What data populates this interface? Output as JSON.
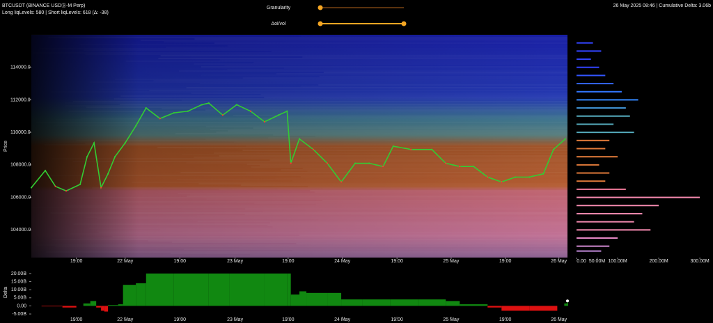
{
  "header": {
    "symbol": "BTCUSDT (BINANCE USDⓈ-M Perp)",
    "levels": "Long liqLevels: 580 | Short liqLevels: 618 (Δ: -38)",
    "status": "26 May 2025 08:46 | Cumulative Delta: 3.06b"
  },
  "controls": [
    {
      "label": "Granularity"
    },
    {
      "label": "Δoi/vol"
    }
  ],
  "chart_data": [
    {
      "type": "line",
      "ylabel": "Price",
      "color": "#33cc33",
      "x": [
        0,
        2.6,
        4.5,
        6.5,
        9.1,
        10.4,
        11.7,
        13,
        14.3,
        15.6,
        17.5,
        19.5,
        21.4,
        24,
        26.6,
        29.2,
        31.8,
        33.1,
        35.7,
        38.3,
        40.9,
        43.5,
        46.1,
        47.7,
        48.4,
        50,
        52.6,
        55.2,
        57.8,
        60.4,
        63,
        65.6,
        67.5,
        70.8,
        74.7,
        77.3,
        79.9,
        82.5,
        85.1,
        87.7,
        90.3,
        92.9,
        95.5,
        97.4,
        99.6
      ],
      "values": [
        106600,
        107650,
        106680,
        106400,
        106800,
        108500,
        109350,
        106600,
        107450,
        108500,
        109350,
        110400,
        111500,
        110850,
        111200,
        111300,
        111700,
        111800,
        111060,
        111700,
        111300,
        110650,
        111060,
        111300,
        108100,
        109600,
        108950,
        108100,
        106950,
        108100,
        108100,
        107900,
        109150,
        108950,
        108950,
        108100,
        107900,
        107900,
        107250,
        106950,
        107250,
        107250,
        107450,
        108950,
        109600
      ],
      "xlim": [
        0,
        100
      ],
      "xticks": [
        {
          "value": 8.4,
          "label": "19:00"
        },
        {
          "value": 17.5,
          "label": "22 May"
        },
        {
          "value": 27.7,
          "label": "19:00"
        },
        {
          "value": 38,
          "label": "23 May"
        },
        {
          "value": 47.9,
          "label": "19:00"
        },
        {
          "value": 58,
          "label": "24 May"
        },
        {
          "value": 68.2,
          "label": "19:00"
        },
        {
          "value": 78.3,
          "label": "25 May"
        },
        {
          "value": 88.4,
          "label": "19:00"
        },
        {
          "value": 98.4,
          "label": "26 May"
        }
      ],
      "ylim": [
        102300,
        116000
      ],
      "yticks": [
        {
          "value": 104000,
          "label": "104000.0"
        },
        {
          "value": 106000,
          "label": "106000.0"
        },
        {
          "value": 108000,
          "label": "108000.0"
        },
        {
          "value": 110000,
          "label": "110000.0"
        },
        {
          "value": 112000,
          "label": "112000.0"
        },
        {
          "value": 114000,
          "label": "114000.0"
        }
      ]
    },
    {
      "type": "hbar",
      "y": [
        115500,
        115000,
        114500,
        114000,
        113500,
        113000,
        112500,
        112000,
        111500,
        111000,
        110500,
        110000,
        109500,
        109000,
        108500,
        108000,
        107500,
        107000,
        106500,
        106000,
        105500,
        105000,
        104500,
        104000,
        103500,
        103000,
        102700
      ],
      "values": [
        40000000,
        60000000,
        35000000,
        55000000,
        70000000,
        90000000,
        110000000,
        150000000,
        120000000,
        130000000,
        90000000,
        140000000,
        80000000,
        70000000,
        100000000,
        55000000,
        80000000,
        70000000,
        120000000,
        300000000,
        200000000,
        160000000,
        140000000,
        180000000,
        100000000,
        80000000,
        60000000
      ],
      "colors": [
        "#3344ff",
        "#3344ff",
        "#3344ff",
        "#3344ff",
        "#3355ff",
        "#3366ff",
        "#3377ff",
        "#3388ff",
        "#4499dd",
        "#55aabb",
        "#55aabb",
        "#55aabb",
        "#e07a3a",
        "#e07a3a",
        "#e07a3a",
        "#e07a3a",
        "#e07a3a",
        "#e07a3a",
        "#f07a9a",
        "#f58ab0",
        "#f58ab0",
        "#f58ab0",
        "#f58ab0",
        "#f58ab0",
        "#e88ac8",
        "#d08ad0",
        "#c08ad8"
      ],
      "ylim": [
        102300,
        116000
      ],
      "xlim": [
        0,
        310000000
      ],
      "xticks": [
        {
          "value": 0,
          "label": "0.00"
        },
        {
          "value": 50000000,
          "label": "50.00M"
        },
        {
          "value": 100000000,
          "label": "100.00M"
        },
        {
          "value": 200000000,
          "label": "200.00M"
        },
        {
          "value": 300000000,
          "label": "300.00M"
        }
      ]
    },
    {
      "type": "delta",
      "ylabel": "Delta",
      "x": [
        0,
        1.9,
        5.8,
        8.4,
        9.7,
        11,
        12.1,
        13,
        13.6,
        14.3,
        16.2,
        17.1,
        19.5,
        21.4,
        26.6,
        33.1,
        37,
        43.5,
        47.7,
        48.4,
        50,
        51.3,
        55.2,
        57.8,
        61.7,
        66.9,
        72.1,
        77.3,
        79.9,
        85.1,
        87.7,
        92.9,
        98.1,
        99.4,
        100
      ],
      "values": [
        0,
        -0.3,
        -1,
        0,
        1.5,
        3,
        -1,
        -3,
        -3.5,
        0.5,
        1,
        13,
        14,
        20,
        20,
        20,
        20,
        20,
        20,
        7,
        9,
        8,
        8,
        4,
        4,
        4,
        4,
        3,
        1,
        -1,
        -3,
        -3,
        0,
        1.5,
        3.06
      ],
      "positive_color": "#118811",
      "negative_color": "#dd1111",
      "xlim": [
        0,
        100
      ],
      "xticks": [
        {
          "value": 8.4,
          "label": "19:00"
        },
        {
          "value": 17.5,
          "label": "22 May"
        },
        {
          "value": 27.7,
          "label": "19:00"
        },
        {
          "value": 38,
          "label": "23 May"
        },
        {
          "value": 47.9,
          "label": "19:00"
        },
        {
          "value": 58,
          "label": "24 May"
        },
        {
          "value": 68.2,
          "label": "19:00"
        },
        {
          "value": 78.3,
          "label": "25 May"
        },
        {
          "value": 88.4,
          "label": "19:00"
        },
        {
          "value": 98.4,
          "label": "26 May"
        }
      ],
      "ylim": [
        -6.7,
        23.4
      ],
      "yticks": [
        {
          "value": -5,
          "label": "-5.00B"
        },
        {
          "value": 0,
          "label": "0.00"
        },
        {
          "value": 5,
          "label": "5.00B"
        },
        {
          "value": 10,
          "label": "10.00B"
        },
        {
          "value": 15,
          "label": "15.00B"
        },
        {
          "value": 20,
          "label": "20.00B"
        }
      ]
    }
  ]
}
